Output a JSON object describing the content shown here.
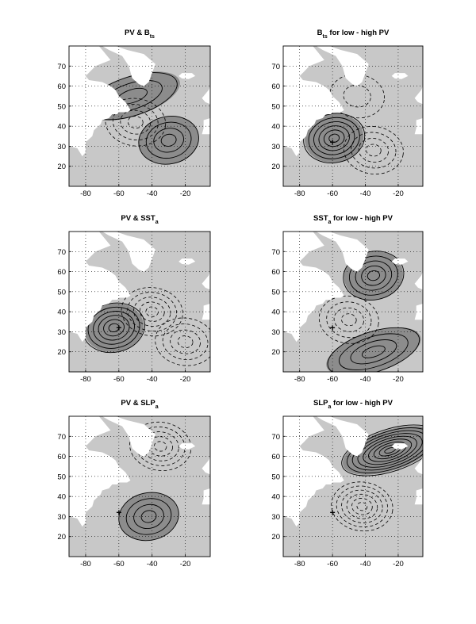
{
  "chart_data": [
    {
      "type": "contour-map",
      "title": "PV & B",
      "title_subscript": "ts",
      "x_ticks": [
        -80,
        -60,
        -40,
        -20
      ],
      "y_ticks": [
        20,
        30,
        40,
        50,
        60,
        70
      ],
      "xlim": [
        -90,
        -5
      ],
      "ylim": [
        10,
        80
      ],
      "grid": true,
      "marker": null,
      "shading": "significance (light/dark grey)",
      "features": [
        {
          "kind": "positive-center",
          "lon": -30,
          "lat": 33,
          "levels": 4
        },
        {
          "kind": "positive-band",
          "lon": -52,
          "lat": 55,
          "levels": 3
        },
        {
          "kind": "negative-center",
          "lon": -50,
          "lat": 42,
          "levels": 4
        }
      ]
    },
    {
      "type": "contour-map",
      "title": "B",
      "title_subscript": "ts",
      "title_suffix": " for low - high PV",
      "x_ticks": [
        -80,
        -60,
        -40,
        -20
      ],
      "y_ticks": [
        20,
        30,
        40,
        50,
        60,
        70
      ],
      "xlim": [
        -90,
        -5
      ],
      "ylim": [
        10,
        80
      ],
      "grid": true,
      "marker": {
        "lon": -60,
        "lat": 32,
        "symbol": "+"
      },
      "features": [
        {
          "kind": "positive-center",
          "lon": -59,
          "lat": 34,
          "levels": 6
        },
        {
          "kind": "negative-center",
          "lon": -35,
          "lat": 28,
          "levels": 4
        },
        {
          "kind": "negative-center",
          "lon": -45,
          "lat": 55,
          "levels": 2
        }
      ]
    },
    {
      "type": "contour-map",
      "title": "PV & SST",
      "title_subscript": "a",
      "x_ticks": [
        -80,
        -60,
        -40,
        -20
      ],
      "y_ticks": [
        20,
        30,
        40,
        50,
        60,
        70
      ],
      "xlim": [
        -90,
        -5
      ],
      "ylim": [
        10,
        80
      ],
      "grid": true,
      "marker": {
        "lon": -60,
        "lat": 32,
        "symbol": "+"
      },
      "features": [
        {
          "kind": "positive-center",
          "lon": -63,
          "lat": 32,
          "levels": 6
        },
        {
          "kind": "negative-center",
          "lon": -40,
          "lat": 40,
          "levels": 5
        },
        {
          "kind": "negative-center",
          "lon": -20,
          "lat": 25,
          "levels": 4
        }
      ]
    },
    {
      "type": "contour-map",
      "title": "SST",
      "title_subscript": "a",
      "title_suffix": " for low - high PV",
      "x_ticks": [
        -80,
        -60,
        -40,
        -20
      ],
      "y_ticks": [
        20,
        30,
        40,
        50,
        60,
        70
      ],
      "xlim": [
        -90,
        -5
      ],
      "ylim": [
        10,
        80
      ],
      "grid": true,
      "marker": {
        "lon": -60,
        "lat": 32,
        "symbol": "+"
      },
      "features": [
        {
          "kind": "positive-center",
          "lon": -35,
          "lat": 58,
          "levels": 5
        },
        {
          "kind": "positive-band",
          "lon": -35,
          "lat": 20,
          "levels": 4
        },
        {
          "kind": "negative-center",
          "lon": -50,
          "lat": 36,
          "levels": 4
        }
      ]
    },
    {
      "type": "contour-map",
      "title": "PV & SLP",
      "title_subscript": "a",
      "x_ticks": [
        -80,
        -60,
        -40,
        -20
      ],
      "y_ticks": [
        20,
        30,
        40,
        50,
        60,
        70
      ],
      "xlim": [
        -90,
        -5
      ],
      "ylim": [
        10,
        80
      ],
      "grid": true,
      "marker": {
        "lon": -60,
        "lat": 32,
        "symbol": "+"
      },
      "features": [
        {
          "kind": "positive-center",
          "lon": -42,
          "lat": 30,
          "levels": 4
        },
        {
          "kind": "negative-center",
          "lon": -35,
          "lat": 65,
          "levels": 5
        }
      ]
    },
    {
      "type": "contour-map",
      "title": "SLP",
      "title_subscript": "a",
      "title_suffix": " for low - high PV",
      "x_ticks": [
        -80,
        -60,
        -40,
        -20
      ],
      "y_ticks": [
        20,
        30,
        40,
        50,
        60,
        70
      ],
      "xlim": [
        -90,
        -5
      ],
      "ylim": [
        10,
        80
      ],
      "grid": true,
      "marker": {
        "lon": -60,
        "lat": 32,
        "symbol": "+"
      },
      "features": [
        {
          "kind": "positive-band",
          "lon": -25,
          "lat": 63,
          "levels": 9
        },
        {
          "kind": "negative-center",
          "lon": -42,
          "lat": 35,
          "levels": 6
        }
      ]
    }
  ]
}
